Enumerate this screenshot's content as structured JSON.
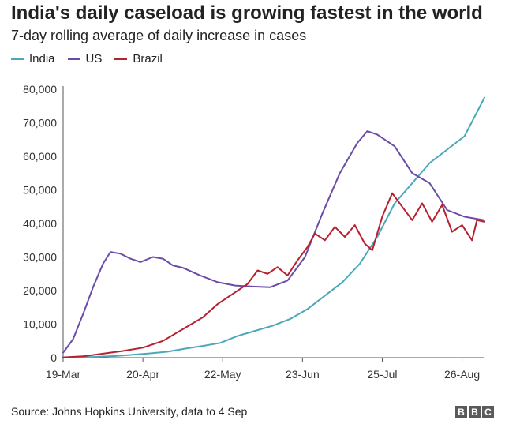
{
  "chart_data": {
    "type": "line",
    "title": "India's daily caseload is growing fastest in the world",
    "subtitle": "7-day rolling average of daily increase in cases",
    "source": "Source: Johns Hopkins University, data to 4 Sep",
    "ylim": [
      0,
      80000
    ],
    "yticks": [
      0,
      10000,
      20000,
      30000,
      40000,
      50000,
      60000,
      70000,
      80000
    ],
    "ytick_labels": [
      "0",
      "10,000",
      "20,000",
      "30,000",
      "40,000",
      "50,000",
      "60,000",
      "70,000",
      "80,000"
    ],
    "xlim": [
      "2020-03-19",
      "2020-09-04"
    ],
    "xticks": [
      "2020-03-19",
      "2020-04-20",
      "2020-05-22",
      "2020-06-23",
      "2020-07-25",
      "2020-08-26"
    ],
    "xtick_labels": [
      "19-Mar",
      "20-Apr",
      "22-May",
      "23-Jun",
      "25-Jul",
      "26-Aug"
    ],
    "grid": false,
    "legend_position": "top-left",
    "colors": {
      "India": "#4aa8b8",
      "US": "#6a4ca8",
      "Brazil": "#b8202f"
    },
    "series": [
      {
        "name": "India",
        "points": [
          [
            "2020-03-19",
            50
          ],
          [
            "2020-03-26",
            80
          ],
          [
            "2020-04-02",
            250
          ],
          [
            "2020-04-09",
            500
          ],
          [
            "2020-04-16",
            900
          ],
          [
            "2020-04-23",
            1300
          ],
          [
            "2020-04-30",
            1800
          ],
          [
            "2020-05-07",
            2700
          ],
          [
            "2020-05-14",
            3500
          ],
          [
            "2020-05-21",
            4400
          ],
          [
            "2020-05-28",
            6500
          ],
          [
            "2020-06-04",
            8000
          ],
          [
            "2020-06-11",
            9500
          ],
          [
            "2020-06-18",
            11500
          ],
          [
            "2020-06-25",
            14500
          ],
          [
            "2020-07-02",
            18500
          ],
          [
            "2020-07-09",
            22500
          ],
          [
            "2020-07-16",
            28000
          ],
          [
            "2020-07-23",
            36000
          ],
          [
            "2020-07-30",
            46000
          ],
          [
            "2020-08-06",
            52000
          ],
          [
            "2020-08-13",
            58000
          ],
          [
            "2020-08-20",
            62000
          ],
          [
            "2020-08-27",
            66000
          ],
          [
            "2020-09-04",
            77500
          ]
        ]
      },
      {
        "name": "US",
        "points": [
          [
            "2020-03-19",
            1500
          ],
          [
            "2020-03-23",
            5500
          ],
          [
            "2020-03-27",
            13000
          ],
          [
            "2020-03-31",
            21000
          ],
          [
            "2020-04-04",
            28000
          ],
          [
            "2020-04-07",
            31500
          ],
          [
            "2020-04-11",
            31000
          ],
          [
            "2020-04-15",
            29500
          ],
          [
            "2020-04-19",
            28500
          ],
          [
            "2020-04-24",
            30000
          ],
          [
            "2020-04-28",
            29500
          ],
          [
            "2020-05-02",
            27500
          ],
          [
            "2020-05-06",
            26800
          ],
          [
            "2020-05-13",
            24500
          ],
          [
            "2020-05-20",
            22500
          ],
          [
            "2020-05-27",
            21500
          ],
          [
            "2020-06-03",
            21200
          ],
          [
            "2020-06-10",
            21000
          ],
          [
            "2020-06-17",
            23000
          ],
          [
            "2020-06-24",
            30000
          ],
          [
            "2020-07-01",
            43000
          ],
          [
            "2020-07-08",
            55000
          ],
          [
            "2020-07-15",
            64000
          ],
          [
            "2020-07-19",
            67500
          ],
          [
            "2020-07-23",
            66500
          ],
          [
            "2020-07-30",
            63000
          ],
          [
            "2020-08-06",
            55000
          ],
          [
            "2020-08-13",
            52000
          ],
          [
            "2020-08-20",
            44000
          ],
          [
            "2020-08-27",
            42000
          ],
          [
            "2020-09-04",
            41000
          ]
        ]
      },
      {
        "name": "Brazil",
        "points": [
          [
            "2020-03-19",
            100
          ],
          [
            "2020-03-27",
            400
          ],
          [
            "2020-04-04",
            1200
          ],
          [
            "2020-04-12",
            2000
          ],
          [
            "2020-04-20",
            3000
          ],
          [
            "2020-04-28",
            5000
          ],
          [
            "2020-05-06",
            8500
          ],
          [
            "2020-05-14",
            12000
          ],
          [
            "2020-05-20",
            16000
          ],
          [
            "2020-05-26",
            19000
          ],
          [
            "2020-06-01",
            22000
          ],
          [
            "2020-06-05",
            26000
          ],
          [
            "2020-06-09",
            25000
          ],
          [
            "2020-06-13",
            27000
          ],
          [
            "2020-06-17",
            24500
          ],
          [
            "2020-06-21",
            29000
          ],
          [
            "2020-06-25",
            33000
          ],
          [
            "2020-06-28",
            37000
          ],
          [
            "2020-07-02",
            35000
          ],
          [
            "2020-07-06",
            39000
          ],
          [
            "2020-07-10",
            36000
          ],
          [
            "2020-07-14",
            39500
          ],
          [
            "2020-07-18",
            34000
          ],
          [
            "2020-07-21",
            32000
          ],
          [
            "2020-07-25",
            42000
          ],
          [
            "2020-07-29",
            49000
          ],
          [
            "2020-08-02",
            45000
          ],
          [
            "2020-08-06",
            41000
          ],
          [
            "2020-08-10",
            46000
          ],
          [
            "2020-08-14",
            40500
          ],
          [
            "2020-08-18",
            45500
          ],
          [
            "2020-08-22",
            37500
          ],
          [
            "2020-08-26",
            39500
          ],
          [
            "2020-08-30",
            35000
          ],
          [
            "2020-09-01",
            41000
          ],
          [
            "2020-09-04",
            40500
          ]
        ]
      }
    ]
  }
}
